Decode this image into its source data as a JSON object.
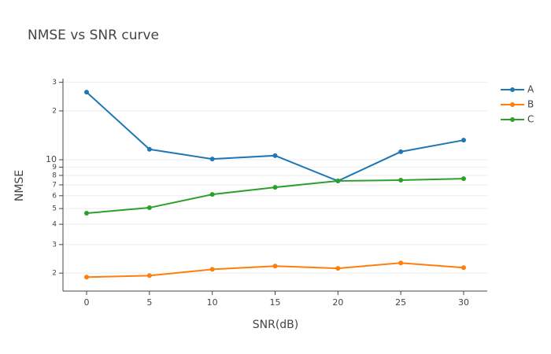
{
  "chart_data": {
    "type": "line",
    "title": "NMSE vs SNR curve",
    "x_label": "SNR(dB)",
    "y_label": "NMSE",
    "x": [
      0,
      5,
      10,
      15,
      20,
      25,
      30
    ],
    "series": [
      {
        "name": "A",
        "color": "#1f77b4",
        "values": [
          26.1,
          11.6,
          10.1,
          10.6,
          7.4,
          11.2,
          13.2
        ]
      },
      {
        "name": "B",
        "color": "#ff7f0e",
        "values": [
          1.89,
          1.93,
          2.11,
          2.21,
          2.14,
          2.31,
          2.16
        ]
      },
      {
        "name": "C",
        "color": "#2ca02c",
        "values": [
          4.68,
          5.06,
          6.11,
          6.76,
          7.4,
          7.48,
          7.64
        ]
      }
    ],
    "xlim": [
      -1.88,
      31.88
    ],
    "xticks": [
      0,
      5,
      10,
      15,
      20,
      25,
      30
    ],
    "ylim": [
      1.55,
      31.6
    ],
    "log_y": true,
    "yticks": [
      2,
      3,
      4,
      5,
      6,
      7,
      8,
      9,
      10,
      {
        "value": 20,
        "label": "2"
      },
      {
        "value": 30,
        "label": "3"
      }
    ],
    "grid": true,
    "legend": "top-right"
  }
}
